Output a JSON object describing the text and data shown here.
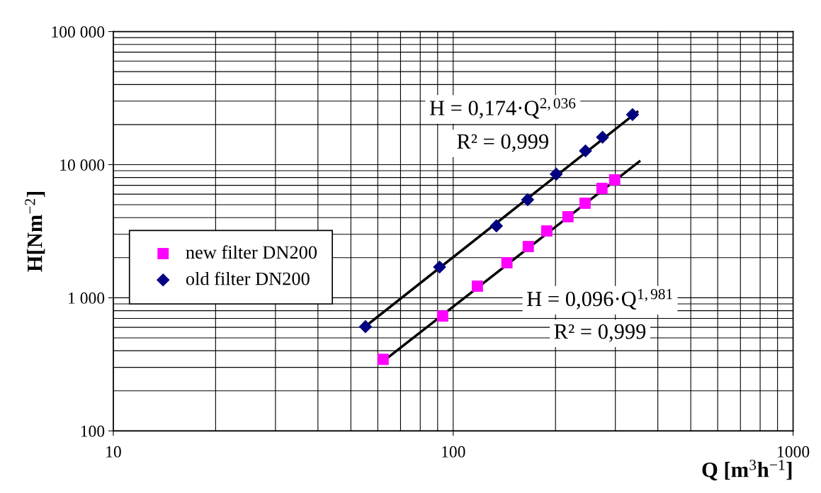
{
  "chart_data": {
    "type": "scatter",
    "log": "xy",
    "xlabel": "Q [m$^{3}$h$^{−1}$]",
    "ylabel": "H[Nm$^{−2}$]",
    "xlim": [
      10,
      1000
    ],
    "xticks": [
      10,
      100,
      1000
    ],
    "ylim": [
      100,
      100000
    ],
    "yticks": [
      {
        "value": 100,
        "label": "100"
      },
      {
        "value": 1000,
        "label": "1 000"
      },
      {
        "value": 10000,
        "label": "10 000"
      },
      {
        "value": 100000,
        "label": "100 000"
      }
    ],
    "grid": true,
    "legend": "left",
    "series": [
      {
        "name": "new filter DN200",
        "color": "#ff00ff",
        "marker": "square",
        "x": [
          62.2,
          93.1,
          117.8,
          143.9,
          166.3,
          188.5,
          217.6,
          244.3,
          274,
          298.6
        ],
        "values": [
          345,
          729,
          1222,
          1833,
          2427,
          3177,
          4064,
          5130,
          6636,
          7690
        ]
      },
      {
        "name": "old filter DN200",
        "color": "#000080",
        "marker": "diamond",
        "x": [
          55.2,
          91.2,
          134,
          165.6,
          201,
          245,
          275,
          337
        ],
        "values": [
          607,
          1702,
          3467,
          5458,
          8490,
          12700,
          16070,
          23770
        ]
      },
      {
        "type": "line",
        "color": "#000000",
        "marker": "none",
        "x": [
          55.2,
          348
        ],
        "values": [
          610,
          24900
        ]
      },
      {
        "type": "line",
        "color": "#000000",
        "marker": "none",
        "x": [
          62.2,
          353
        ],
        "values": [
          333,
          10570
        ]
      }
    ],
    "annotations": [
      "H = 0,174·Q$^{2,036}$",
      "R² = 0,999",
      "H = 0,096·Q$^{1,981}$",
      "R² = 0,999"
    ]
  }
}
